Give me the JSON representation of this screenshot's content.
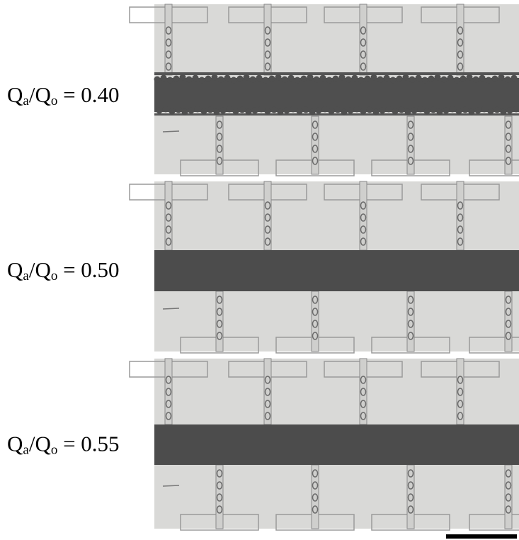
{
  "panels": [
    {
      "label": [
        "Q",
        "a",
        "/Q",
        "o",
        " = 0.40"
      ]
    },
    {
      "label": [
        "Q",
        "a",
        "/Q",
        "o",
        " = 0.50"
      ]
    },
    {
      "label": [
        "Q",
        "a",
        "/Q",
        "o",
        " = 0.55"
      ]
    }
  ]
}
